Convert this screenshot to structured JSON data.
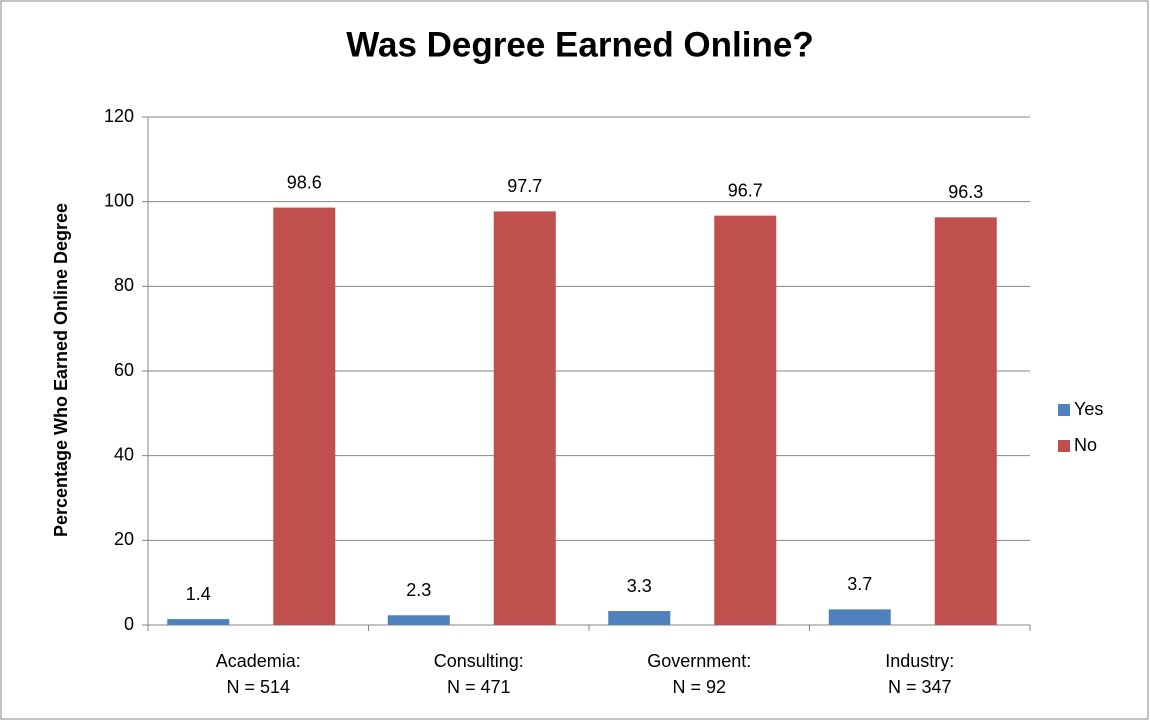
{
  "chart_data": {
    "type": "bar",
    "title": "Was Degree Earned Online?",
    "y_label": "Percentage Who Earned Online Degree",
    "categories": [
      [
        "Academia:",
        "N = 514"
      ],
      [
        "Consulting:",
        "N = 471"
      ],
      [
        "Government:",
        "N = 92"
      ],
      [
        "Industry:",
        "N = 347"
      ]
    ],
    "series": [
      {
        "name": "Yes",
        "color": "#4f81bd",
        "values": [
          1.4,
          2.3,
          3.3,
          3.7
        ]
      },
      {
        "name": "No",
        "color": "#c0504d",
        "values": [
          98.6,
          97.7,
          96.7,
          96.3
        ]
      }
    ],
    "ylim": [
      0,
      120
    ],
    "yticks": [
      0,
      20,
      40,
      60,
      80,
      100,
      120
    ],
    "grid": true,
    "legend": "right"
  }
}
